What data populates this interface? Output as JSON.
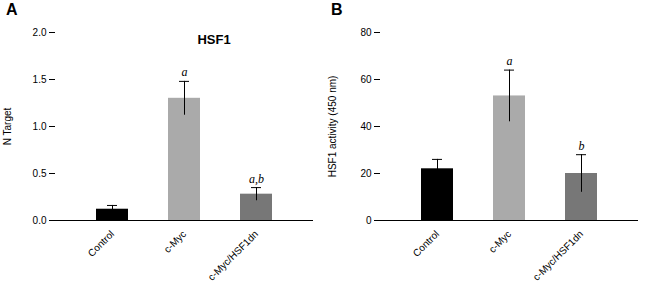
{
  "chart_data": [
    {
      "type": "bar",
      "title": "A",
      "annotation": "HSF1",
      "ylabel": "N Target",
      "categories": [
        "Control",
        "c-Myc",
        "c-Myc/HSF1dn"
      ],
      "values": [
        0.12,
        1.3,
        0.28
      ],
      "errors": [
        0.04,
        0.18,
        0.07
      ],
      "colors": [
        "#000000",
        "#aaaaaa",
        "#777777"
      ],
      "sig_labels": [
        null,
        "a",
        "a,b"
      ],
      "ylim": [
        0,
        2.0
      ],
      "yticks": [
        {
          "value": 0.0,
          "label": "0.0"
        },
        0.5,
        {
          "value": 1.0,
          "label": "1.0"
        },
        1.5,
        {
          "value": 2.0,
          "label": "2.0"
        }
      ]
    },
    {
      "type": "bar",
      "title": "B",
      "ylabel": "HSF1 activity (450 nm)",
      "categories": [
        "Control",
        "c-Myc",
        "c-Myc/HSF1dn"
      ],
      "values": [
        22.0,
        53.0,
        20.0
      ],
      "errors": [
        4.0,
        11.0,
        8.0
      ],
      "colors": [
        "#000000",
        "#aaaaaa",
        "#777777"
      ],
      "sig_labels": [
        null,
        "a",
        "b"
      ],
      "ylim": [
        0,
        80
      ],
      "yticks": [
        0,
        20,
        40,
        60,
        80
      ]
    }
  ]
}
